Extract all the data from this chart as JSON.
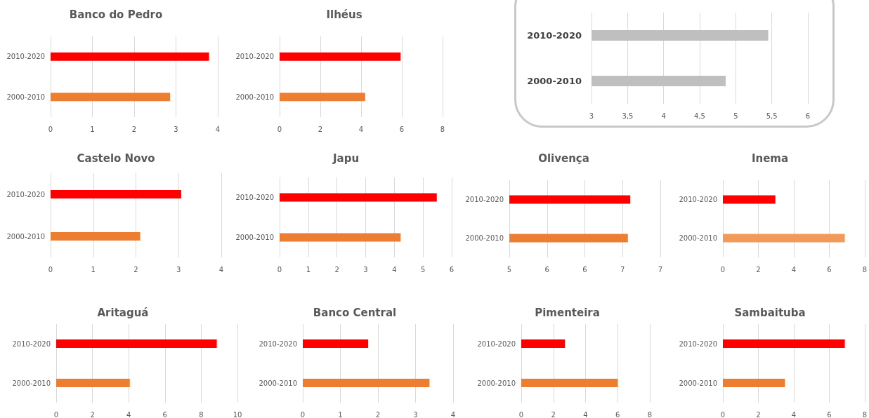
{
  "chart_data": [
    {
      "type": "bar",
      "orientation": "horizontal",
      "title": "Banco do Pedro",
      "categories": [
        "2010-2020",
        "2000-2010"
      ],
      "values": [
        3.79,
        2.86
      ],
      "colors": [
        "#ff0000",
        "#ed7d31"
      ],
      "xlim": [
        0,
        4
      ],
      "xticks": [
        0,
        1,
        2,
        3,
        4
      ],
      "grid": "x"
    },
    {
      "type": "bar",
      "orientation": "horizontal",
      "title": "Ilhéus",
      "categories": [
        "2010-2020",
        "2000-2010"
      ],
      "values": [
        5.94,
        4.2
      ],
      "colors": [
        "#ff0000",
        "#ed7d31"
      ],
      "xlim": [
        0,
        8
      ],
      "xticks": [
        0,
        2,
        4,
        6,
        8
      ],
      "grid": "x"
    },
    {
      "type": "bar",
      "orientation": "horizontal",
      "categories": [
        "2010-2020",
        "2000-2010"
      ],
      "values": [
        5.45,
        4.86
      ],
      "colors": [
        "#bfbfbf",
        "#bfbfbf"
      ],
      "xlim": [
        3,
        6
      ],
      "xticks": [
        3,
        {
          "value": 3.5,
          "label": "3,5"
        },
        4,
        {
          "value": 4.5,
          "label": "4,5"
        },
        5,
        {
          "value": 5.5,
          "label": "5,5"
        },
        6
      ],
      "grid": "x"
    },
    {
      "type": "bar",
      "orientation": "horizontal",
      "title": "Castelo Novo",
      "categories": [
        "2010-2020",
        "2000-2010"
      ],
      "values": [
        3.06,
        2.1
      ],
      "colors": [
        "#ff0000",
        "#ed7d31"
      ],
      "xlim": [
        0,
        4
      ],
      "xticks": [
        0,
        1,
        2,
        3,
        4
      ],
      "grid": "x"
    },
    {
      "type": "bar",
      "orientation": "horizontal",
      "title": "Japu",
      "categories": [
        "2010-2020",
        "2000-2010"
      ],
      "values": [
        5.48,
        4.22
      ],
      "colors": [
        "#ff0000",
        "#ed7d31"
      ],
      "xlim": [
        0,
        6
      ],
      "xticks": [
        0,
        1,
        2,
        3,
        4,
        5,
        6
      ],
      "grid": "x"
    },
    {
      "type": "bar",
      "orientation": "horizontal",
      "title": "Olivença",
      "categories": [
        "2010-2020",
        "2000-2010"
      ],
      "values": [
        6.6,
        6.57
      ],
      "colors": [
        "#ff0000",
        "#ed7d31"
      ],
      "xlim": [
        5,
        7
      ],
      "xticks": [
        5,
        {
          "value": 5.5,
          "label": "6"
        },
        6,
        {
          "value": 6.5,
          "label": "7"
        },
        7
      ],
      "grid": "x"
    },
    {
      "type": "bar",
      "orientation": "horizontal",
      "title": "Inema",
      "categories": [
        "2010-2020",
        "2000-2010"
      ],
      "values": [
        2.96,
        6.88
      ],
      "colors": [
        "#ff0000",
        "#f19a5a"
      ],
      "xlim": [
        0,
        8
      ],
      "xticks": [
        0,
        2,
        4,
        6,
        8
      ],
      "grid": "x"
    },
    {
      "type": "bar",
      "orientation": "horizontal",
      "title": "Aritaguá",
      "categories": [
        "2010-2020",
        "2000-2010"
      ],
      "values": [
        8.86,
        4.06
      ],
      "colors": [
        "#ff0000",
        "#ed7d31"
      ],
      "xlim": [
        0,
        10
      ],
      "xticks": [
        0,
        2,
        4,
        6,
        8,
        10
      ],
      "grid": "x"
    },
    {
      "type": "bar",
      "orientation": "horizontal",
      "title": "Banco Central",
      "categories": [
        "2010-2020",
        "2000-2010"
      ],
      "values": [
        1.74,
        3.37
      ],
      "colors": [
        "#ff0000",
        "#ed7d31"
      ],
      "xlim": [
        0,
        4
      ],
      "xticks": [
        0,
        1,
        2,
        3,
        4
      ],
      "grid": "x"
    },
    {
      "type": "bar",
      "orientation": "horizontal",
      "title": "Pimenteira",
      "categories": [
        "2010-2020",
        "2000-2010"
      ],
      "values": [
        2.72,
        6.0
      ],
      "colors": [
        "#ff0000",
        "#ed7d31"
      ],
      "xlim": [
        0,
        8
      ],
      "xticks": [
        0,
        2,
        4,
        6,
        8
      ],
      "grid": "x"
    },
    {
      "type": "bar",
      "orientation": "horizontal",
      "title": "Sambaituba",
      "categories": [
        "2010-2020",
        "2000-2010"
      ],
      "values": [
        6.88,
        3.5
      ],
      "colors": [
        "#ff0000",
        "#ed7d31"
      ],
      "xlim": [
        0,
        8
      ],
      "xticks": [
        0,
        2,
        4,
        6,
        8
      ],
      "grid": "x"
    }
  ]
}
